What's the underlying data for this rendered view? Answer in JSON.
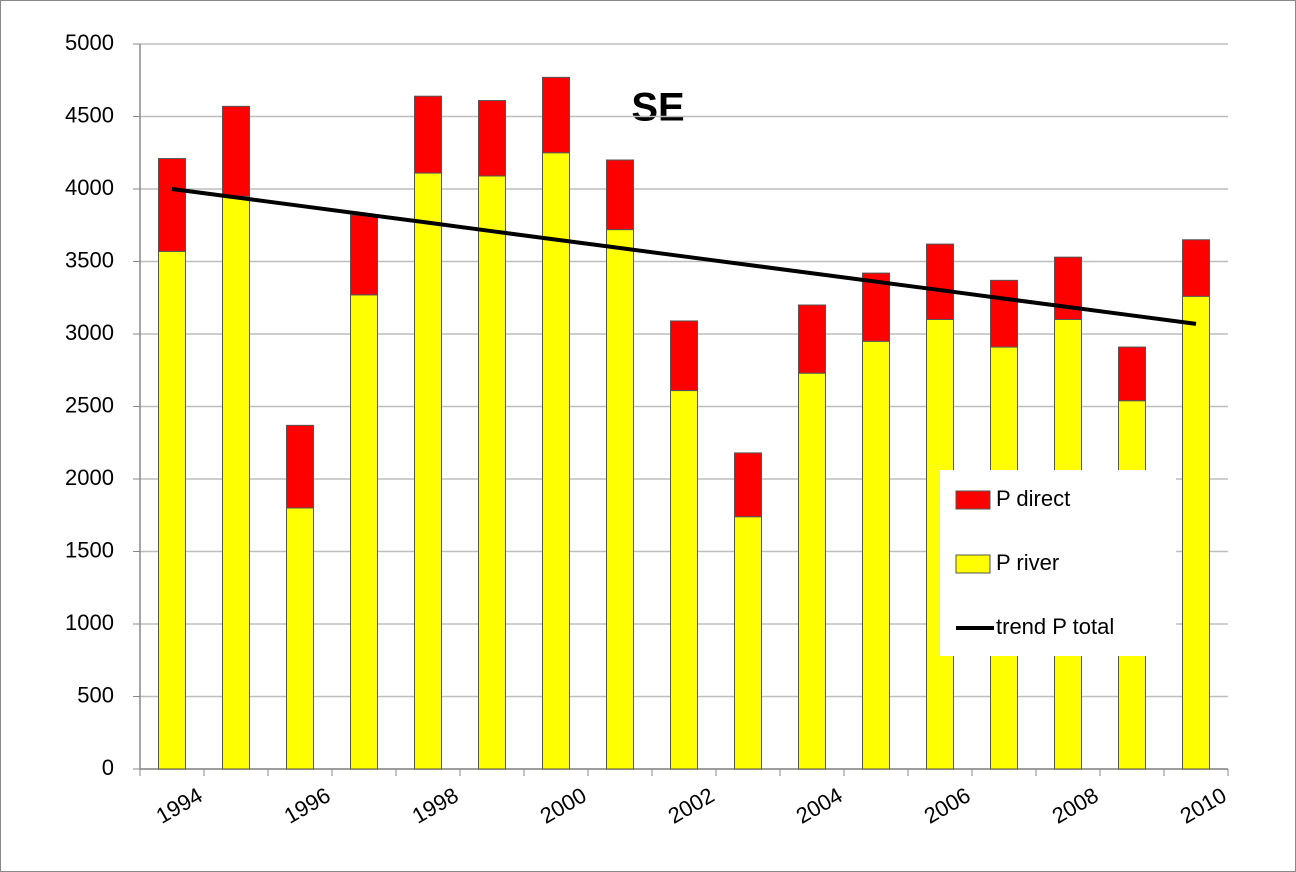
{
  "chart_data": {
    "type": "stacked_bar_line",
    "title": "SE",
    "categories": [
      "1994",
      null,
      "1996",
      null,
      "1998",
      null,
      "2000",
      null,
      "2002",
      null,
      "2004",
      null,
      "2006",
      null,
      "2008",
      null,
      "2010"
    ],
    "series": [
      {
        "name": "P river",
        "color": "#ffff00",
        "type": "bar",
        "values": [
          3570,
          3950,
          1800,
          3270,
          4110,
          4090,
          4250,
          3720,
          2610,
          1740,
          2730,
          2950,
          3100,
          2910,
          3100,
          2540,
          3260
        ]
      },
      {
        "name": "P direct",
        "color": "#ff0000",
        "type": "bar",
        "values": [
          640,
          620,
          570,
          550,
          530,
          520,
          520,
          480,
          480,
          440,
          470,
          470,
          520,
          460,
          430,
          370,
          390
        ]
      },
      {
        "name": "trend P total",
        "color": "#000000",
        "type": "line",
        "values": [
          4000,
          3942,
          3884,
          3826,
          3768,
          3709,
          3651,
          3593,
          3535,
          3477,
          3419,
          3361,
          3303,
          3244,
          3186,
          3128,
          3070
        ]
      }
    ],
    "ylim": [
      0,
      5000
    ],
    "yticks": [
      0,
      500,
      1000,
      1500,
      2000,
      2500,
      3000,
      3500,
      4000,
      4500,
      5000
    ],
    "grid": true,
    "legend": "lower right"
  }
}
